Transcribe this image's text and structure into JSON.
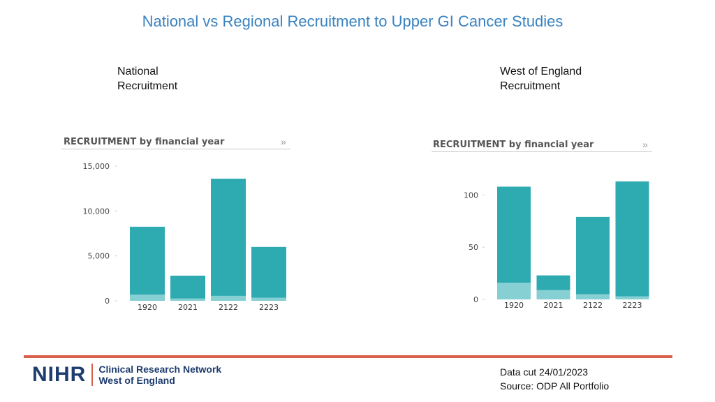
{
  "page": {
    "title": "National vs Regional Recruitment to Upper GI Cancer Studies",
    "national_label": [
      "National",
      "Recruitment"
    ],
    "regional_label": [
      "West of England",
      "Recruitment"
    ],
    "footer": {
      "logo_text": "NIHR",
      "network_name": [
        "Clinical Research Network",
        "West of England"
      ],
      "data_cut": "Data cut 24/01/2023",
      "source": "Source: ODP All Portfolio"
    },
    "accent_colors": {
      "title": "#3a83c1",
      "bar_main": "#2eaab1",
      "bar_light": "#86cfd2",
      "footer_rule": "#d9604a",
      "logo": "#1e3c6e"
    }
  },
  "chart_data": [
    {
      "type": "bar",
      "title": "RECRUITMENT by financial year",
      "categories": [
        "1920",
        "2021",
        "2122",
        "2223"
      ],
      "series": [
        {
          "values": [
            700,
            250,
            550,
            350
          ]
        },
        {
          "values": [
            7550,
            2550,
            13050,
            5650
          ]
        }
      ],
      "totals": [
        8250,
        2800,
        13600,
        6000
      ],
      "stacked": true,
      "ylim": [
        0,
        15000
      ],
      "yticks": [
        0,
        5000,
        10000,
        15000
      ],
      "ytick_labels": [
        "0",
        "5,000",
        "10,000",
        "15,000"
      ],
      "grid": false
    },
    {
      "type": "bar",
      "title": "RECRUITMENT by financial year",
      "categories": [
        "1920",
        "2021",
        "2122",
        "2223"
      ],
      "series": [
        {
          "values": [
            16,
            9,
            5,
            3
          ]
        },
        {
          "values": [
            92,
            14,
            74,
            110
          ]
        }
      ],
      "totals": [
        108,
        23,
        79,
        113
      ],
      "stacked": true,
      "ylim": [
        0,
        113
      ],
      "yticks": [
        0,
        50,
        100
      ],
      "ytick_labels": [
        "0",
        "50",
        "100"
      ],
      "grid": false
    }
  ]
}
